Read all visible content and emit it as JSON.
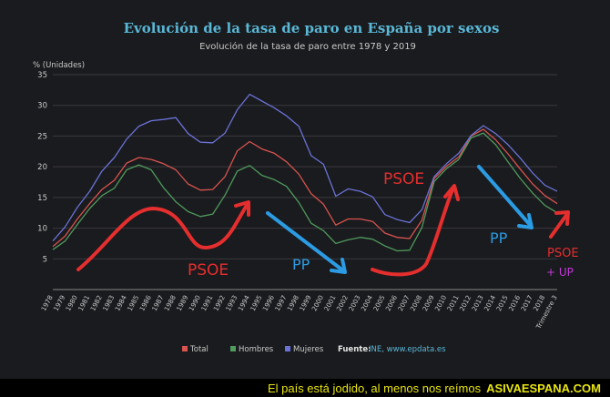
{
  "chart_data": {
    "type": "line",
    "title": "Evolución de la tasa de paro en España por sexos",
    "subtitle": "Evolución de la tasa de paro entre 1978 y 2019",
    "ylabel": "% (Unidades)",
    "ylim": [
      0,
      35
    ],
    "yticks": [
      5,
      10,
      15,
      20,
      25,
      30,
      35
    ],
    "x_tick_labels": [
      "1978",
      "1979",
      "1980",
      "1981",
      "1982",
      "1983",
      "1984",
      "1985",
      "1986",
      "1987",
      "1988",
      "1989",
      "1990",
      "1991",
      "1992",
      "1993",
      "1994",
      "1995",
      "1996",
      "1997",
      "1998",
      "1999",
      "2000",
      "2001",
      "2002",
      "2003",
      "2004",
      "2005",
      "2006",
      "2007",
      "2008",
      "2009",
      "2010",
      "2011",
      "2012",
      "2013",
      "2014",
      "2015",
      "2016",
      "2017",
      "2018",
      "Trimestre 3"
    ],
    "x": [
      1978,
      1979,
      1980,
      1981,
      1982,
      1983,
      1984,
      1985,
      1986,
      1987,
      1988,
      1989,
      1990,
      1991,
      1992,
      1993,
      1994,
      1995,
      1996,
      1997,
      1998,
      1999,
      2000,
      2001,
      2002,
      2003,
      2004,
      2005,
      2006,
      2007,
      2008,
      2009,
      2010,
      2011,
      2012,
      2013,
      2014,
      2015,
      2016,
      2017,
      2018,
      2019
    ],
    "series": [
      {
        "name": "Total",
        "color": "#d9534f",
        "values": [
          7,
          8.7,
          11.5,
          14,
          16.3,
          17.8,
          20.6,
          21.5,
          21.2,
          20.5,
          19.5,
          17.2,
          16.2,
          16.3,
          18.4,
          22.6,
          24.1,
          22.9,
          22.2,
          20.8,
          18.8,
          15.6,
          13.9,
          10.5,
          11.5,
          11.5,
          11.1,
          9.2,
          8.5,
          8.3,
          11.3,
          18.1,
          20.1,
          21.6,
          25,
          26.1,
          24.4,
          22.1,
          19.6,
          17.2,
          15.3,
          14
        ]
      },
      {
        "name": "Hombres",
        "color": "#4f9a5c",
        "values": [
          6.5,
          7.9,
          10.6,
          13.2,
          15.3,
          16.5,
          19.5,
          20.3,
          19.5,
          16.6,
          14.3,
          12.7,
          11.9,
          12.3,
          15.4,
          19.3,
          20.2,
          18.6,
          17.9,
          16.8,
          14.2,
          10.8,
          9.6,
          7.5,
          8.1,
          8.5,
          8.2,
          7.1,
          6.3,
          6.4,
          10.1,
          17.6,
          19.7,
          21.2,
          24.7,
          25.5,
          23.6,
          20.8,
          18.1,
          15.7,
          13.7,
          12.5
        ]
      },
      {
        "name": "Mujeres",
        "color": "#6a72d6",
        "values": [
          7.9,
          10.2,
          13.4,
          16,
          19.3,
          21.5,
          24.5,
          26.6,
          27.5,
          27.7,
          28,
          25.4,
          24,
          23.9,
          25.5,
          29.3,
          31.8,
          30.7,
          29.6,
          28.3,
          26.6,
          21.8,
          20.4,
          15.2,
          16.4,
          16,
          15.1,
          12.2,
          11.4,
          10.9,
          13,
          18.4,
          20.5,
          22.2,
          25.1,
          26.7,
          25.4,
          23.6,
          21.4,
          19,
          17,
          16
        ]
      }
    ],
    "legend": {
      "items": [
        "Total",
        "Hombres",
        "Mujeres"
      ],
      "placement": "bottom"
    },
    "source_prefix": "Fuente:",
    "source_text": "INE, www.epdata.es",
    "annotations": [
      {
        "text": "PSOE",
        "color": "#e52e2e",
        "kind": "label"
      },
      {
        "text": "PP",
        "color": "#2b9be3",
        "kind": "label"
      },
      {
        "text": "PSOE",
        "color": "#e52e2e",
        "kind": "label"
      },
      {
        "text": "PP",
        "color": "#2b9be3",
        "kind": "label"
      },
      {
        "text": "PSOE",
        "color": "#e52e2e",
        "kind": "label"
      },
      {
        "text": "+ UP",
        "color": "#c13ad6",
        "kind": "label"
      }
    ]
  },
  "colors": {
    "background": "#1a1b1e",
    "title": "#5ab7d6",
    "text": "#c9c9c9",
    "grid": "#3a3b3f",
    "source_accent": "#5ab7d6"
  },
  "footer": {
    "caption": "El país está jodido, al menos nos reímos",
    "brand": "ASIVAESPANA.COM"
  }
}
